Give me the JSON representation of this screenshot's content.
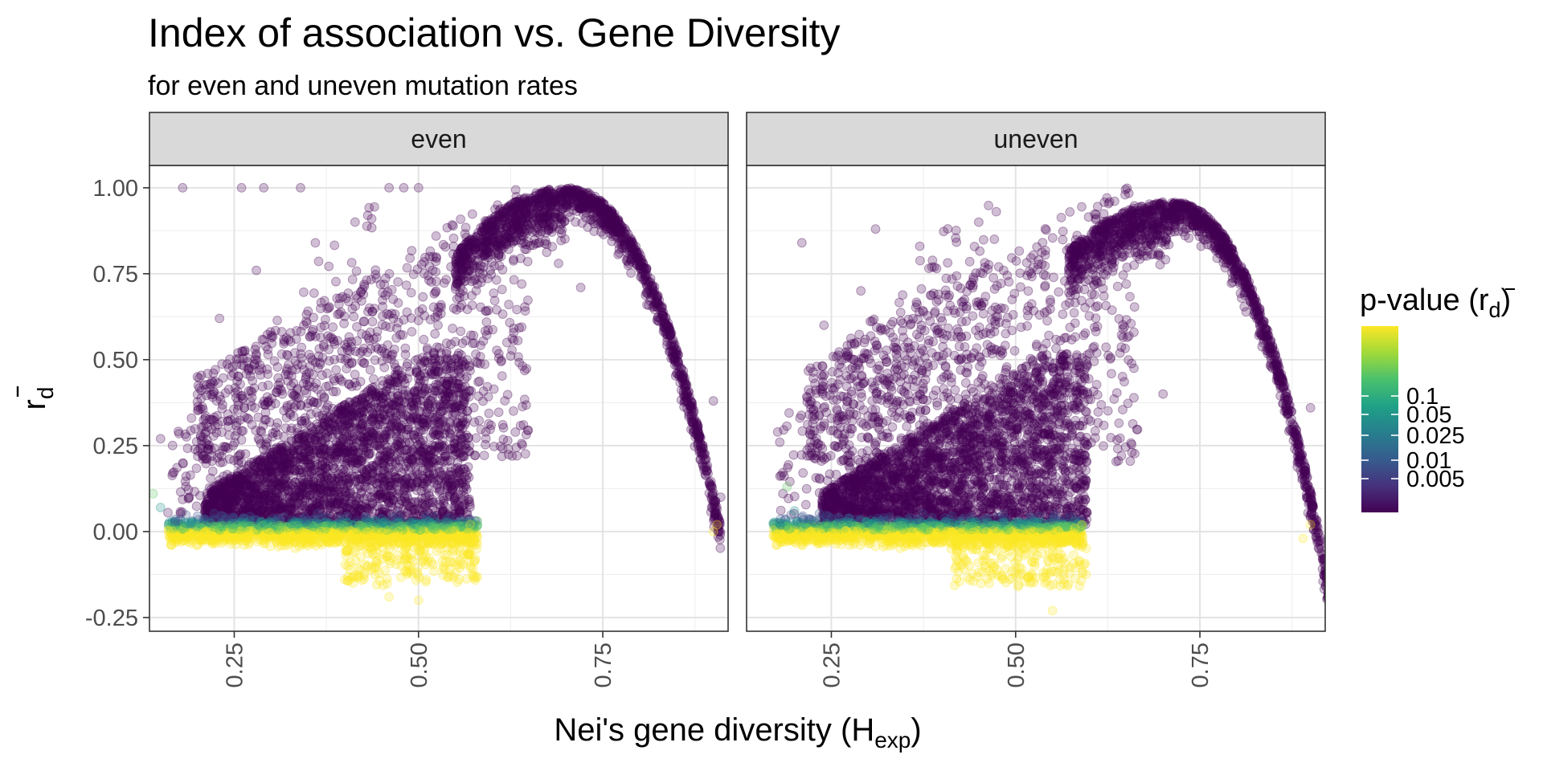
{
  "chart_data": {
    "type": "scatter",
    "title": "Index of association vs. Gene Diversity",
    "subtitle": "for even and uneven mutation rates",
    "xlabel": {
      "main": "Nei's gene diversity (H",
      "sub": "exp",
      "close": ")"
    },
    "ylabel": {
      "main": "r",
      "sub": "d",
      "bar": true
    },
    "xlim": [
      0.135,
      0.92
    ],
    "ylim": [
      -0.29,
      1.065
    ],
    "x_ticks": [
      0.25,
      0.5,
      0.75
    ],
    "x_tick_labels": [
      "0.25",
      "0.50",
      "0.75"
    ],
    "y_ticks": [
      -0.25,
      0,
      0.25,
      0.5,
      0.75,
      1.0
    ],
    "y_tick_labels": [
      "-0.25",
      "0.00",
      "0.25",
      "0.50",
      "0.75",
      "1.00"
    ],
    "grid": true,
    "point_opacity": 0.25,
    "facets": [
      {
        "label": "even",
        "points": [
          [
            0.18,
            1.0,
            0.001
          ],
          [
            0.26,
            1.0,
            0.001
          ],
          [
            0.29,
            1.0,
            0.001
          ],
          [
            0.34,
            1.0,
            0.001
          ],
          [
            0.15,
            0.27,
            0.001
          ],
          [
            0.14,
            0.11,
            0.04
          ],
          [
            0.15,
            0.07,
            0.02
          ],
          [
            0.17,
            0.03,
            0.006
          ],
          [
            0.28,
            0.76,
            0.001
          ],
          [
            0.23,
            0.62,
            0.001
          ],
          [
            0.2,
            0.45,
            0.001
          ],
          [
            0.36,
            0.84,
            0.001
          ],
          [
            0.46,
            1.0,
            0.001
          ],
          [
            0.48,
            1.0,
            0.001
          ],
          [
            0.5,
            1.0,
            0.001
          ],
          [
            0.9,
            0.38,
            0.001
          ],
          [
            0.91,
            0.1,
            0.001
          ],
          [
            0.905,
            0.02,
            0.1
          ],
          [
            0.9,
            0.0,
            0.2
          ],
          [
            0.46,
            -0.19,
            0.5
          ],
          [
            0.5,
            -0.2,
            0.5
          ],
          [
            0.4,
            -0.14,
            0.5
          ],
          [
            0.55,
            -0.12,
            0.5
          ],
          [
            0.58,
            0.03,
            0.08
          ],
          [
            0.57,
            0.02,
            0.12
          ],
          [
            0.64,
            0.72,
            0.001
          ],
          [
            0.69,
            0.78,
            0.001
          ],
          [
            0.72,
            0.71,
            0.001
          ],
          [
            0.62,
            0.55,
            0.001
          ],
          [
            0.55,
            0.36,
            0.001
          ]
        ]
      },
      {
        "label": "uneven",
        "points": [
          [
            0.21,
            0.84,
            0.001
          ],
          [
            0.31,
            0.88,
            0.001
          ],
          [
            0.18,
            0.26,
            0.001
          ],
          [
            0.19,
            0.13,
            0.04
          ],
          [
            0.2,
            0.06,
            0.02
          ],
          [
            0.21,
            0.04,
            0.006
          ],
          [
            0.29,
            0.7,
            0.001
          ],
          [
            0.24,
            0.6,
            0.001
          ],
          [
            0.37,
            0.83,
            0.001
          ],
          [
            0.45,
            0.9,
            0.001
          ],
          [
            0.9,
            0.36,
            0.001
          ],
          [
            0.895,
            0.1,
            0.001
          ],
          [
            0.9,
            0.02,
            0.1
          ],
          [
            0.89,
            -0.02,
            0.3
          ],
          [
            0.55,
            -0.23,
            0.5
          ],
          [
            0.52,
            -0.15,
            0.5
          ],
          [
            0.46,
            -0.08,
            0.5
          ],
          [
            0.59,
            0.02,
            0.1
          ],
          [
            0.58,
            0.01,
            0.12
          ],
          [
            0.65,
            0.72,
            0.001
          ],
          [
            0.7,
            0.4,
            0.001
          ],
          [
            0.61,
            0.52,
            0.001
          ],
          [
            0.52,
            0.34,
            0.001
          ]
        ]
      }
    ],
    "legend": {
      "title_main": "p-value (r",
      "title_sub": "d",
      "title_close": ")",
      "placement": "right",
      "colors": [
        "#440154",
        "#3b528b",
        "#21918c",
        "#5ec962",
        "#fde725"
      ],
      "breaks": [
        "0.005",
        "0.01",
        "0.025",
        "0.05",
        "0.1"
      ]
    }
  }
}
